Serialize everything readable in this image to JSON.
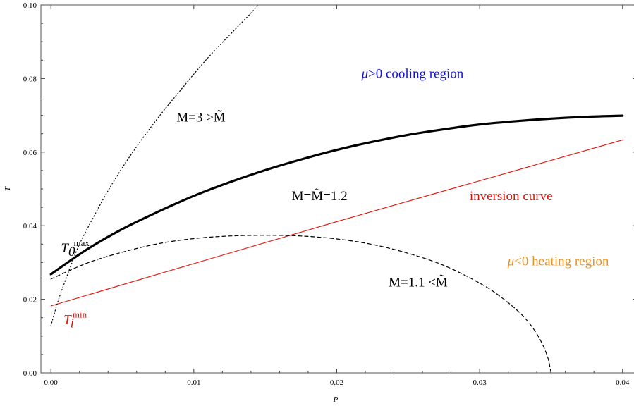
{
  "chart_data": {
    "type": "line",
    "title": "",
    "xlabel": "P",
    "ylabel": "T",
    "xlim": [
      -0.0007,
      0.041
    ],
    "ylim": [
      0,
      0.1
    ],
    "grid": false,
    "x_ticks": [
      0.0,
      0.01,
      0.02,
      0.03,
      0.04
    ],
    "x_tick_labels": [
      "0.00",
      "0.01",
      "0.02",
      "0.03",
      "0.04"
    ],
    "y_ticks": [
      0.0,
      0.02,
      0.04,
      0.06,
      0.08,
      0.1
    ],
    "y_tick_labels": [
      "0.00",
      "0.02",
      "0.04",
      "0.06",
      "0.08",
      "0.10"
    ],
    "series": [
      {
        "style": "solid-thick",
        "color": "#000000",
        "points": [
          [
            0.0,
            0.0268
          ],
          [
            0.0025,
            0.0335
          ],
          [
            0.005,
            0.0391
          ],
          [
            0.0075,
            0.0438
          ],
          [
            0.01,
            0.0481
          ],
          [
            0.0125,
            0.0518
          ],
          [
            0.015,
            0.0551
          ],
          [
            0.0175,
            0.058
          ],
          [
            0.02,
            0.0606
          ],
          [
            0.0225,
            0.0628
          ],
          [
            0.025,
            0.0647
          ],
          [
            0.0275,
            0.0662
          ],
          [
            0.03,
            0.0675
          ],
          [
            0.0325,
            0.0684
          ],
          [
            0.035,
            0.0691
          ],
          [
            0.0375,
            0.0696
          ],
          [
            0.04,
            0.0699
          ]
        ]
      },
      {
        "style": "solid-thin",
        "color": "#e3120b",
        "points": [
          [
            0.0,
            0.0182
          ],
          [
            0.01,
            0.0297
          ],
          [
            0.02,
            0.0411
          ],
          [
            0.03,
            0.0522
          ],
          [
            0.04,
            0.0633
          ]
        ]
      },
      {
        "style": "dashed",
        "color": "#000000",
        "points": [
          [
            0.0,
            0.0255
          ],
          [
            0.0025,
            0.0298
          ],
          [
            0.005,
            0.0328
          ],
          [
            0.0075,
            0.0351
          ],
          [
            0.01,
            0.0365
          ],
          [
            0.0125,
            0.0372
          ],
          [
            0.015,
            0.0374
          ],
          [
            0.0175,
            0.0372
          ],
          [
            0.02,
            0.0364
          ],
          [
            0.0225,
            0.0349
          ],
          [
            0.025,
            0.0325
          ],
          [
            0.0275,
            0.0292
          ],
          [
            0.03,
            0.0244
          ],
          [
            0.0315,
            0.0206
          ],
          [
            0.033,
            0.0156
          ],
          [
            0.034,
            0.0106
          ],
          [
            0.0347,
            0.005
          ],
          [
            0.035,
            0.0
          ]
        ]
      },
      {
        "style": "dotted",
        "color": "#000000",
        "points": [
          [
            0.0,
            0.0128
          ],
          [
            0.0005,
            0.0195
          ],
          [
            0.001,
            0.025
          ],
          [
            0.0015,
            0.0302
          ],
          [
            0.002,
            0.035
          ],
          [
            0.003,
            0.0425
          ],
          [
            0.004,
            0.0495
          ],
          [
            0.005,
            0.0558
          ],
          [
            0.006,
            0.0615
          ],
          [
            0.007,
            0.0668
          ],
          [
            0.008,
            0.0718
          ],
          [
            0.009,
            0.0765
          ],
          [
            0.01,
            0.0812
          ],
          [
            0.011,
            0.0857
          ],
          [
            0.012,
            0.0898
          ],
          [
            0.013,
            0.0938
          ],
          [
            0.014,
            0.0978
          ],
          [
            0.0145,
            0.1
          ]
        ]
      }
    ],
    "annotations": [
      {
        "id": "cooling",
        "text": "μ>0 cooling region",
        "color": "#1010d6",
        "x": 0.0253,
        "y": 0.0802
      },
      {
        "id": "heating",
        "text": "μ<0 heating region",
        "color": "#f0921e",
        "x": 0.0355,
        "y": 0.0292
      },
      {
        "id": "inversion",
        "text": "inversion curve",
        "color": "#e3120b",
        "x": 0.0322,
        "y": 0.0469
      },
      {
        "id": "m3",
        "text": "M=3 >M̃",
        "color": "#000000",
        "x": 0.0105,
        "y": 0.0683
      },
      {
        "id": "m12",
        "text": "M=M̃=1.2",
        "color": "#000000",
        "x": 0.0188,
        "y": 0.0469
      },
      {
        "id": "m11",
        "text": "M=1.1 <M̃",
        "color": "#000000",
        "x": 0.0257,
        "y": 0.0235
      },
      {
        "id": "t0max",
        "base": "T",
        "sub": "0",
        "sup": "max",
        "color": "#000000",
        "x": 0.0017,
        "y": 0.0328
      },
      {
        "id": "timin",
        "base": "T",
        "sub": "i",
        "sup": "min",
        "color": "#e3120b",
        "x": 0.0017,
        "y": 0.0133
      }
    ]
  }
}
